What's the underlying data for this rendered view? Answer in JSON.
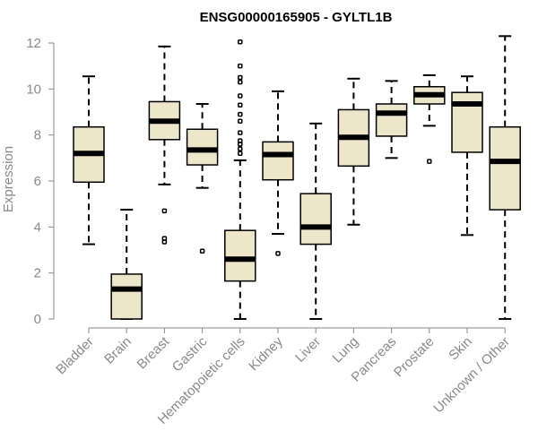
{
  "chart_data": {
    "type": "boxplot",
    "title": "ENSG00000165905 - GYLTL1B",
    "xlabel": "",
    "ylabel": "Expression",
    "ylim": [
      0,
      12
    ],
    "yticks": [
      0,
      2,
      4,
      6,
      8,
      10,
      12
    ],
    "box_color": "#ede6cb",
    "categories": [
      "Bladder",
      "Brain",
      "Breast",
      "Gastric",
      "Hematopoietic cells",
      "Kidney",
      "Liver",
      "Lung",
      "Pancreas",
      "Prostate",
      "Skin",
      "Unknown / Other"
    ],
    "boxes": [
      {
        "name": "Bladder",
        "min": 3.25,
        "q1": 5.95,
        "median": 7.2,
        "q3": 8.35,
        "max": 10.55,
        "outliers": []
      },
      {
        "name": "Brain",
        "min": 0.0,
        "q1": 0.0,
        "median": 1.3,
        "q3": 1.95,
        "max": 4.75,
        "outliers": []
      },
      {
        "name": "Breast",
        "min": 5.85,
        "q1": 7.8,
        "median": 8.6,
        "q3": 9.45,
        "max": 11.85,
        "outliers": [
          4.7,
          3.5,
          3.35
        ]
      },
      {
        "name": "Gastric",
        "min": 5.7,
        "q1": 6.7,
        "median": 7.35,
        "q3": 8.25,
        "max": 9.35,
        "outliers": [
          2.95
        ]
      },
      {
        "name": "Hematopoietic cells",
        "min": 0.0,
        "q1": 1.65,
        "median": 2.6,
        "q3": 3.85,
        "max": 6.9,
        "outliers": [
          7.2,
          7.4,
          7.6,
          7.75,
          8.1,
          8.6,
          8.9,
          9.3,
          9.7,
          10.3,
          10.5,
          11.0,
          12.05
        ]
      },
      {
        "name": "Kidney",
        "min": 3.7,
        "q1": 6.05,
        "median": 7.15,
        "q3": 7.7,
        "max": 9.9,
        "outliers": [
          2.85
        ]
      },
      {
        "name": "Liver",
        "min": 0.0,
        "q1": 3.25,
        "median": 4.0,
        "q3": 5.45,
        "max": 8.5,
        "outliers": []
      },
      {
        "name": "Lung",
        "min": 4.1,
        "q1": 6.65,
        "median": 7.9,
        "q3": 9.1,
        "max": 10.45,
        "outliers": []
      },
      {
        "name": "Pancreas",
        "min": 7.0,
        "q1": 7.95,
        "median": 8.95,
        "q3": 9.35,
        "max": 10.35,
        "outliers": []
      },
      {
        "name": "Prostate",
        "min": 8.4,
        "q1": 9.35,
        "median": 9.75,
        "q3": 10.1,
        "max": 10.6,
        "outliers": [
          6.85
        ]
      },
      {
        "name": "Skin",
        "min": 3.65,
        "q1": 7.25,
        "median": 9.35,
        "q3": 9.85,
        "max": 10.55,
        "outliers": []
      },
      {
        "name": "Unknown / Other",
        "min": 0.0,
        "q1": 4.75,
        "median": 6.85,
        "q3": 8.35,
        "max": 12.3,
        "outliers": []
      }
    ]
  }
}
